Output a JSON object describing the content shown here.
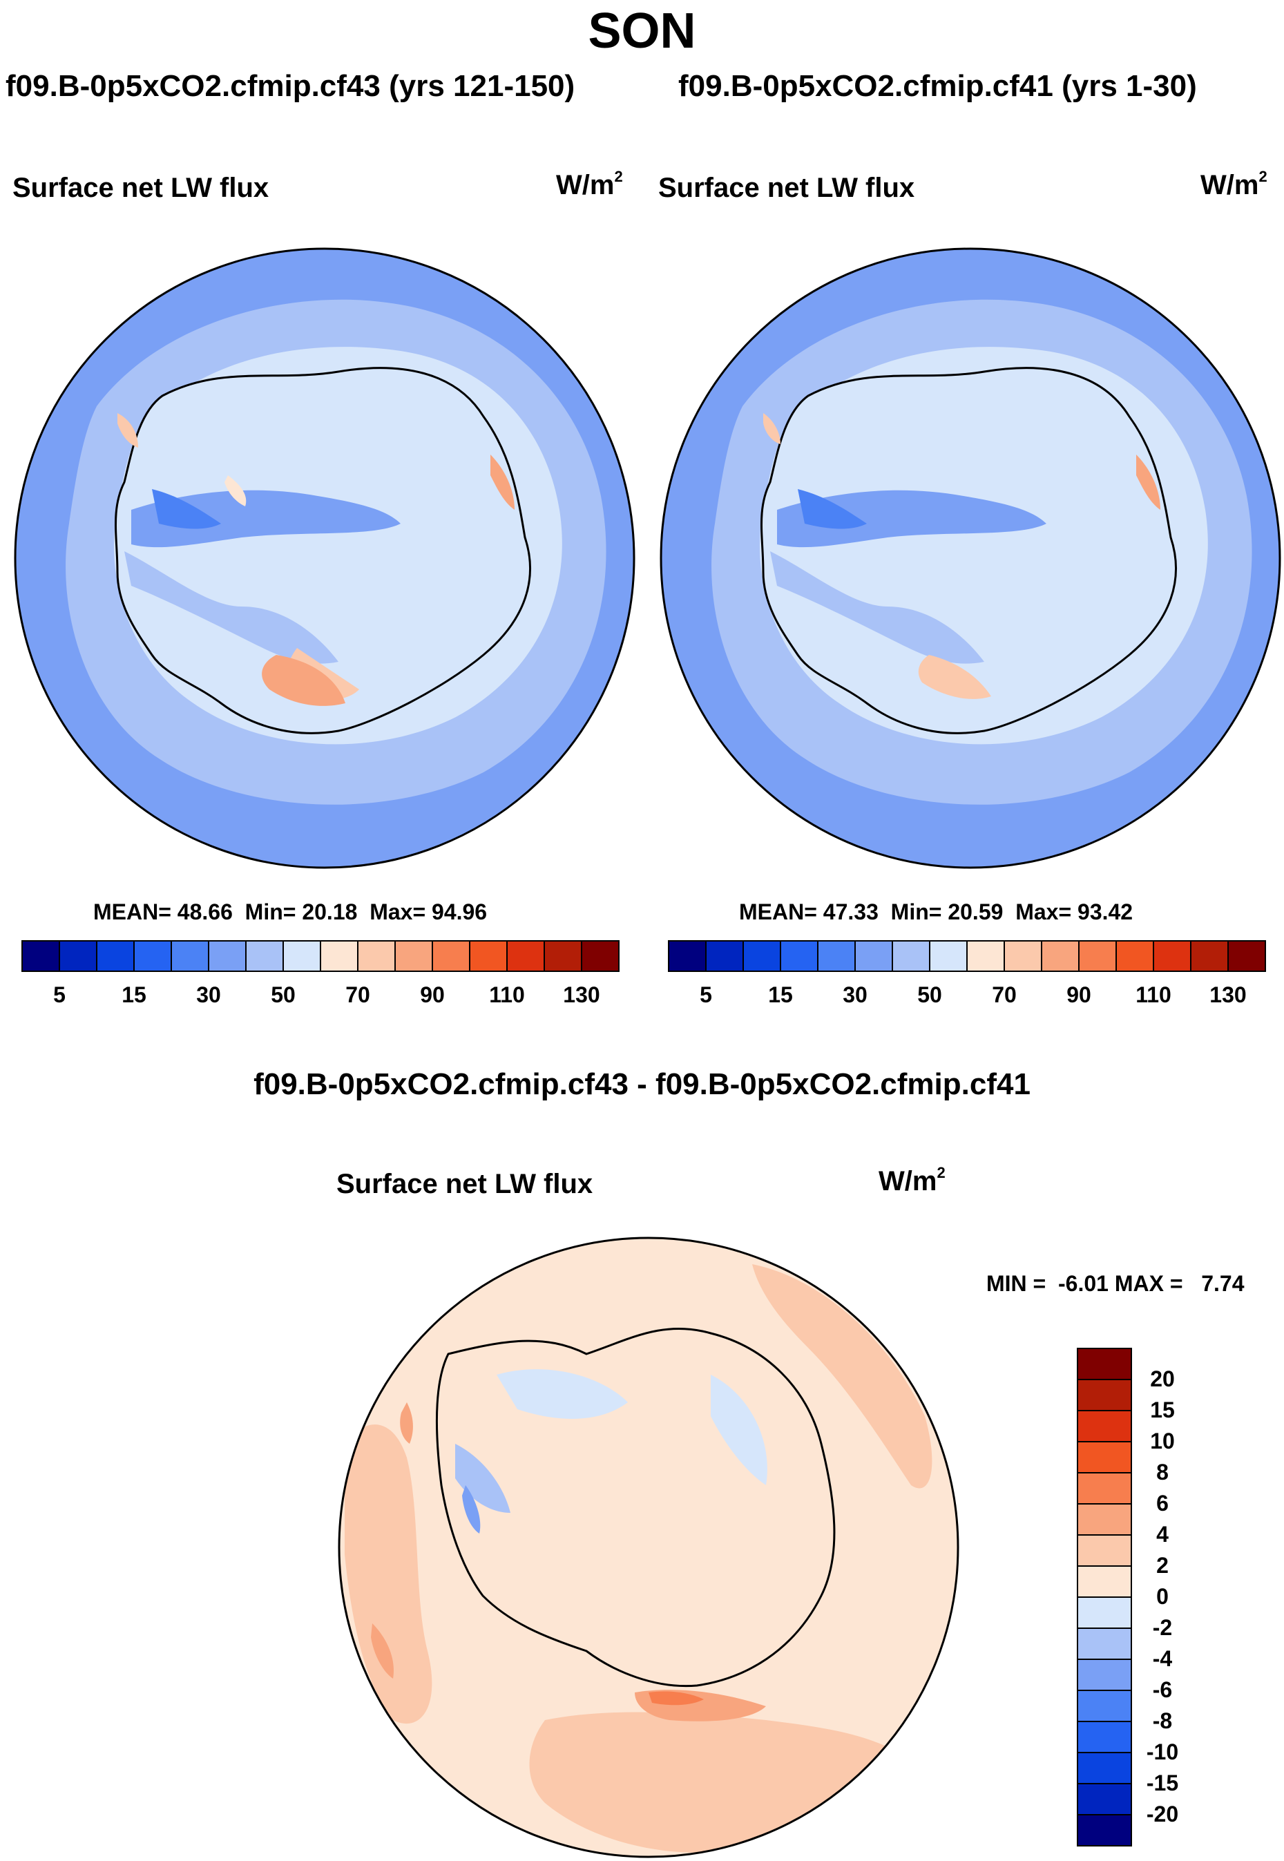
{
  "season": "SON",
  "panels": [
    {
      "case": "f09.B-0p5xCO2.cfmip.cf43 (yrs 121-150)",
      "variable": "Surface net LW flux",
      "units": "W/m",
      "units_sup": "2",
      "stats": {
        "mean_label": "MEAN=",
        "mean": "48.66",
        "min_label": "Min=",
        "min": "20.18",
        "max_label": "Max=",
        "max": "94.96"
      }
    },
    {
      "case": "f09.B-0p5xCO2.cfmip.cf41 (yrs 1-30)",
      "variable": "Surface net LW flux",
      "units": "W/m",
      "units_sup": "2",
      "stats": {
        "mean_label": "MEAN=",
        "mean": "47.33",
        "min_label": "Min=",
        "min": "20.59",
        "max_label": "Max=",
        "max": "93.42"
      }
    }
  ],
  "diff_panel": {
    "title": "f09.B-0p5xCO2.cfmip.cf43 - f09.B-0p5xCO2.cfmip.cf41",
    "variable": "Surface net LW flux",
    "units": "W/m",
    "units_sup": "2",
    "minmax": "MIN =  -6.01 MAX =   7.74"
  },
  "colorbar_main": {
    "colors": [
      "#00007f",
      "#0025bf",
      "#0a44e0",
      "#2563f2",
      "#4b82f5",
      "#7aa0f5",
      "#a9c2f7",
      "#d6e6fb",
      "#fde6d4",
      "#fbc9ac",
      "#f8a57e",
      "#f77e4e",
      "#f15622",
      "#dd3210",
      "#b21e07",
      "#7f0000"
    ],
    "tick_labels": [
      "5",
      "15",
      "30",
      "50",
      "70",
      "90",
      "110",
      "130"
    ]
  },
  "colorbar_diff": {
    "colors_top_to_bottom": [
      "#7f0000",
      "#b21e07",
      "#dd3210",
      "#f15622",
      "#f77e4e",
      "#f8a57e",
      "#fbc9ac",
      "#fde6d4",
      "#d6e6fb",
      "#a9c2f7",
      "#7aa0f5",
      "#4b82f5",
      "#2563f2",
      "#0a44e0",
      "#0025bf",
      "#00007f"
    ],
    "tick_labels": [
      "20",
      "15",
      "10",
      "8",
      "6",
      "4",
      "2",
      "0",
      "-2",
      "-4",
      "-6",
      "-8",
      "-10",
      "-15",
      "-20"
    ]
  },
  "map_colors": {
    "ocean_outer": "#7aa0f5",
    "ocean_mid": "#a9c2f7",
    "light_blue": "#d6e6fb",
    "warm_light": "#fde6d4",
    "warm_mid": "#fbc9ac",
    "warm_strong": "#f8a57e",
    "warm_deep": "#f77e4e",
    "blue_mid": "#4b82f5",
    "coast": "#000000"
  }
}
